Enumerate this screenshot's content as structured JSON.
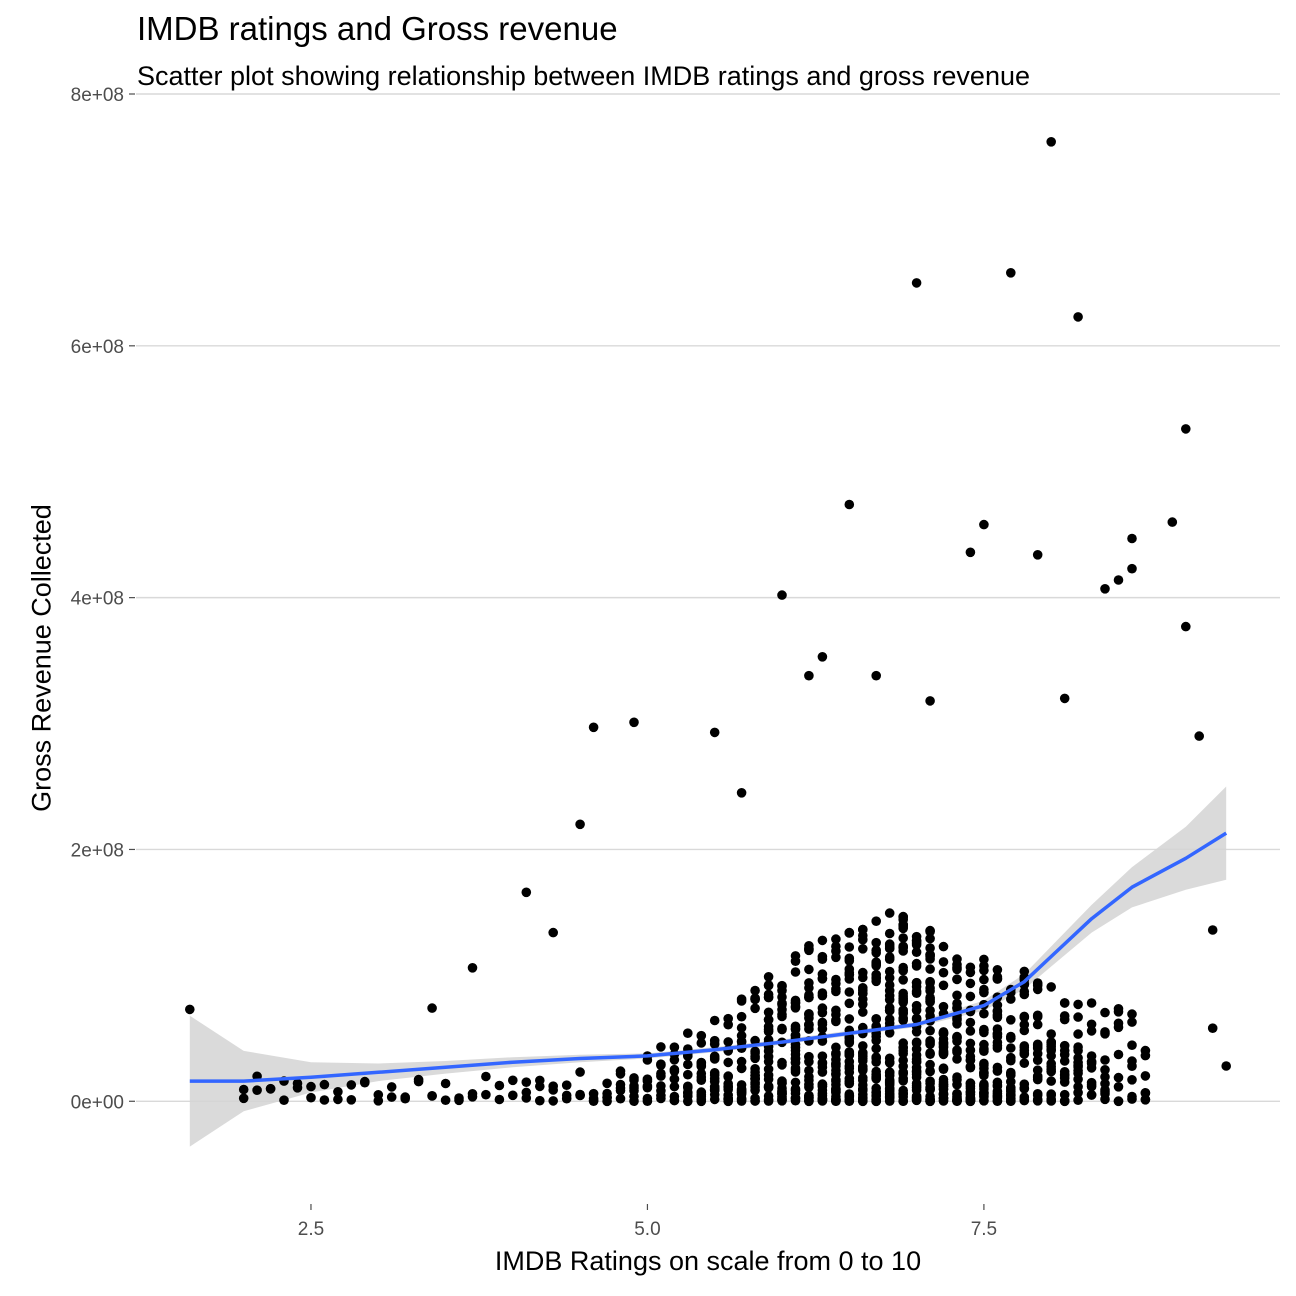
{
  "chart_data": {
    "type": "scatter",
    "title": "IMDB ratings and Gross revenue",
    "subtitle": "Scatter plot showing relationship between IMDB ratings and gross revenue",
    "xlabel": "IMDB Ratings on scale from 0 to 10",
    "ylabel": "Gross Revenue Collected",
    "xlim": [
      1.2,
      9.7
    ],
    "ylim": [
      -80000000,
      800000000
    ],
    "x_ticks": [
      2.5,
      5.0,
      7.5
    ],
    "x_tick_labels": [
      "2.5",
      "5.0",
      "7.5"
    ],
    "y_ticks": [
      0,
      200000000,
      400000000,
      600000000,
      800000000
    ],
    "y_tick_labels": [
      "0e+00",
      "2e+08",
      "4e+08",
      "6e+08",
      "8e+08"
    ],
    "grid": "horizontal",
    "legend": "none",
    "colors": {
      "points": "#000000",
      "smooth_line": "#3366ff",
      "confidence_band": "#d3d3d3",
      "grid": "#d9d9d9"
    },
    "outliers": [
      {
        "x": 1.6,
        "y": 73000000
      },
      {
        "x": 4.5,
        "y": 220000000
      },
      {
        "x": 4.6,
        "y": 297000000
      },
      {
        "x": 4.9,
        "y": 301000000
      },
      {
        "x": 5.5,
        "y": 293000000
      },
      {
        "x": 4.1,
        "y": 166000000
      },
      {
        "x": 6.0,
        "y": 402000000
      },
      {
        "x": 6.5,
        "y": 474000000
      },
      {
        "x": 7.0,
        "y": 650000000
      },
      {
        "x": 7.4,
        "y": 436000000
      },
      {
        "x": 7.5,
        "y": 458000000
      },
      {
        "x": 7.7,
        "y": 658000000
      },
      {
        "x": 7.9,
        "y": 434000000
      },
      {
        "x": 8.0,
        "y": 762000000
      },
      {
        "x": 8.2,
        "y": 623000000
      },
      {
        "x": 8.6,
        "y": 423000000
      },
      {
        "x": 8.9,
        "y": 460000000
      },
      {
        "x": 9.0,
        "y": 534000000
      },
      {
        "x": 9.0,
        "y": 377000000
      },
      {
        "x": 9.1,
        "y": 290000000
      },
      {
        "x": 9.2,
        "y": 136000000
      },
      {
        "x": 9.2,
        "y": 58000000
      },
      {
        "x": 9.3,
        "y": 28000000
      },
      {
        "x": 8.1,
        "y": 320000000
      },
      {
        "x": 8.4,
        "y": 407000000
      },
      {
        "x": 8.5,
        "y": 414000000
      },
      {
        "x": 6.2,
        "y": 338000000
      },
      {
        "x": 6.3,
        "y": 353000000
      },
      {
        "x": 6.7,
        "y": 338000000
      },
      {
        "x": 7.1,
        "y": 318000000
      },
      {
        "x": 5.7,
        "y": 245000000
      },
      {
        "x": 3.4,
        "y": 74000000
      },
      {
        "x": 3.7,
        "y": 106000000
      },
      {
        "x": 4.3,
        "y": 134000000
      },
      {
        "x": 8.6,
        "y": 447000000
      }
    ],
    "smooth_line": {
      "x": [
        1.6,
        2.0,
        2.5,
        3.0,
        3.5,
        4.0,
        4.5,
        5.0,
        5.5,
        6.0,
        6.5,
        7.0,
        7.5,
        7.8,
        8.0,
        8.3,
        8.6,
        9.0,
        9.3
      ],
      "y": [
        16000000,
        16000000,
        19000000,
        23000000,
        27000000,
        31000000,
        34000000,
        36000000,
        41000000,
        47000000,
        54000000,
        61000000,
        76000000,
        95000000,
        115000000,
        145000000,
        170000000,
        193000000,
        213000000
      ]
    },
    "confidence_band": {
      "x": [
        1.6,
        2.0,
        2.5,
        3.0,
        3.5,
        4.0,
        4.5,
        5.0,
        5.5,
        6.0,
        6.5,
        7.0,
        7.5,
        7.8,
        8.0,
        8.3,
        8.6,
        9.0,
        9.3
      ],
      "lower": [
        -36000000,
        -8000000,
        7000000,
        16000000,
        22000000,
        27000000,
        31000000,
        34000000,
        39000000,
        45000000,
        52000000,
        59000000,
        72000000,
        89000000,
        107000000,
        134000000,
        154000000,
        168000000,
        176000000
      ],
      "upper": [
        68000000,
        40000000,
        31000000,
        30000000,
        32000000,
        35000000,
        37000000,
        38000000,
        43000000,
        49000000,
        56000000,
        63000000,
        80000000,
        101000000,
        123000000,
        156000000,
        186000000,
        218000000,
        250000000
      ]
    }
  }
}
